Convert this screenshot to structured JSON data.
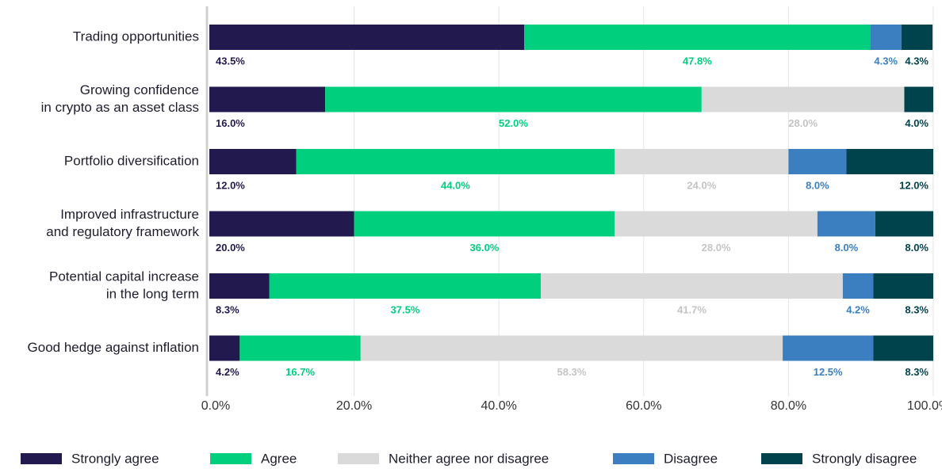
{
  "chart_data": {
    "type": "bar",
    "orientation": "horizontal",
    "stacked": true,
    "categories": [
      [
        "Trading opportunities"
      ],
      [
        "Growing confidence",
        "in crypto as an asset class"
      ],
      [
        "Portfolio diversification"
      ],
      [
        "Improved infrastructure",
        "and regulatory framework"
      ],
      [
        "Potential capital increase",
        "in the long term"
      ],
      [
        "Good hedge against inflation"
      ]
    ],
    "series": [
      {
        "name": "Strongly agree",
        "color": "#221a4f",
        "label_color": "#221a4f",
        "values": [
          43.5,
          16.0,
          12.0,
          20.0,
          8.3,
          4.2
        ]
      },
      {
        "name": "Agree",
        "color": "#00cf7e",
        "label_color": "#00cf7e",
        "values": [
          47.8,
          52.0,
          44.0,
          36.0,
          37.5,
          16.7
        ]
      },
      {
        "name": "Neither agree nor disagree",
        "color": "#dadada",
        "label_color": "#c4c4c4",
        "values": [
          0,
          28.0,
          24.0,
          28.0,
          41.7,
          58.3
        ]
      },
      {
        "name": "Disagree",
        "color": "#3b7fc0",
        "label_color": "#3b7fc0",
        "values": [
          4.3,
          0,
          8.0,
          8.0,
          4.2,
          12.5
        ]
      },
      {
        "name": "Strongly disagree",
        "color": "#00434d",
        "label_color": "#00434d",
        "values": [
          4.3,
          4.0,
          12.0,
          8.0,
          8.3,
          8.3
        ]
      }
    ],
    "value_format": "0.0%",
    "xlim": [
      0,
      100
    ],
    "xticks": [
      "0.0%",
      "20.0%",
      "40.0%",
      "60.0%",
      "80.0%",
      "100.0%"
    ],
    "grid": "vertical",
    "legend_position": "bottom"
  }
}
